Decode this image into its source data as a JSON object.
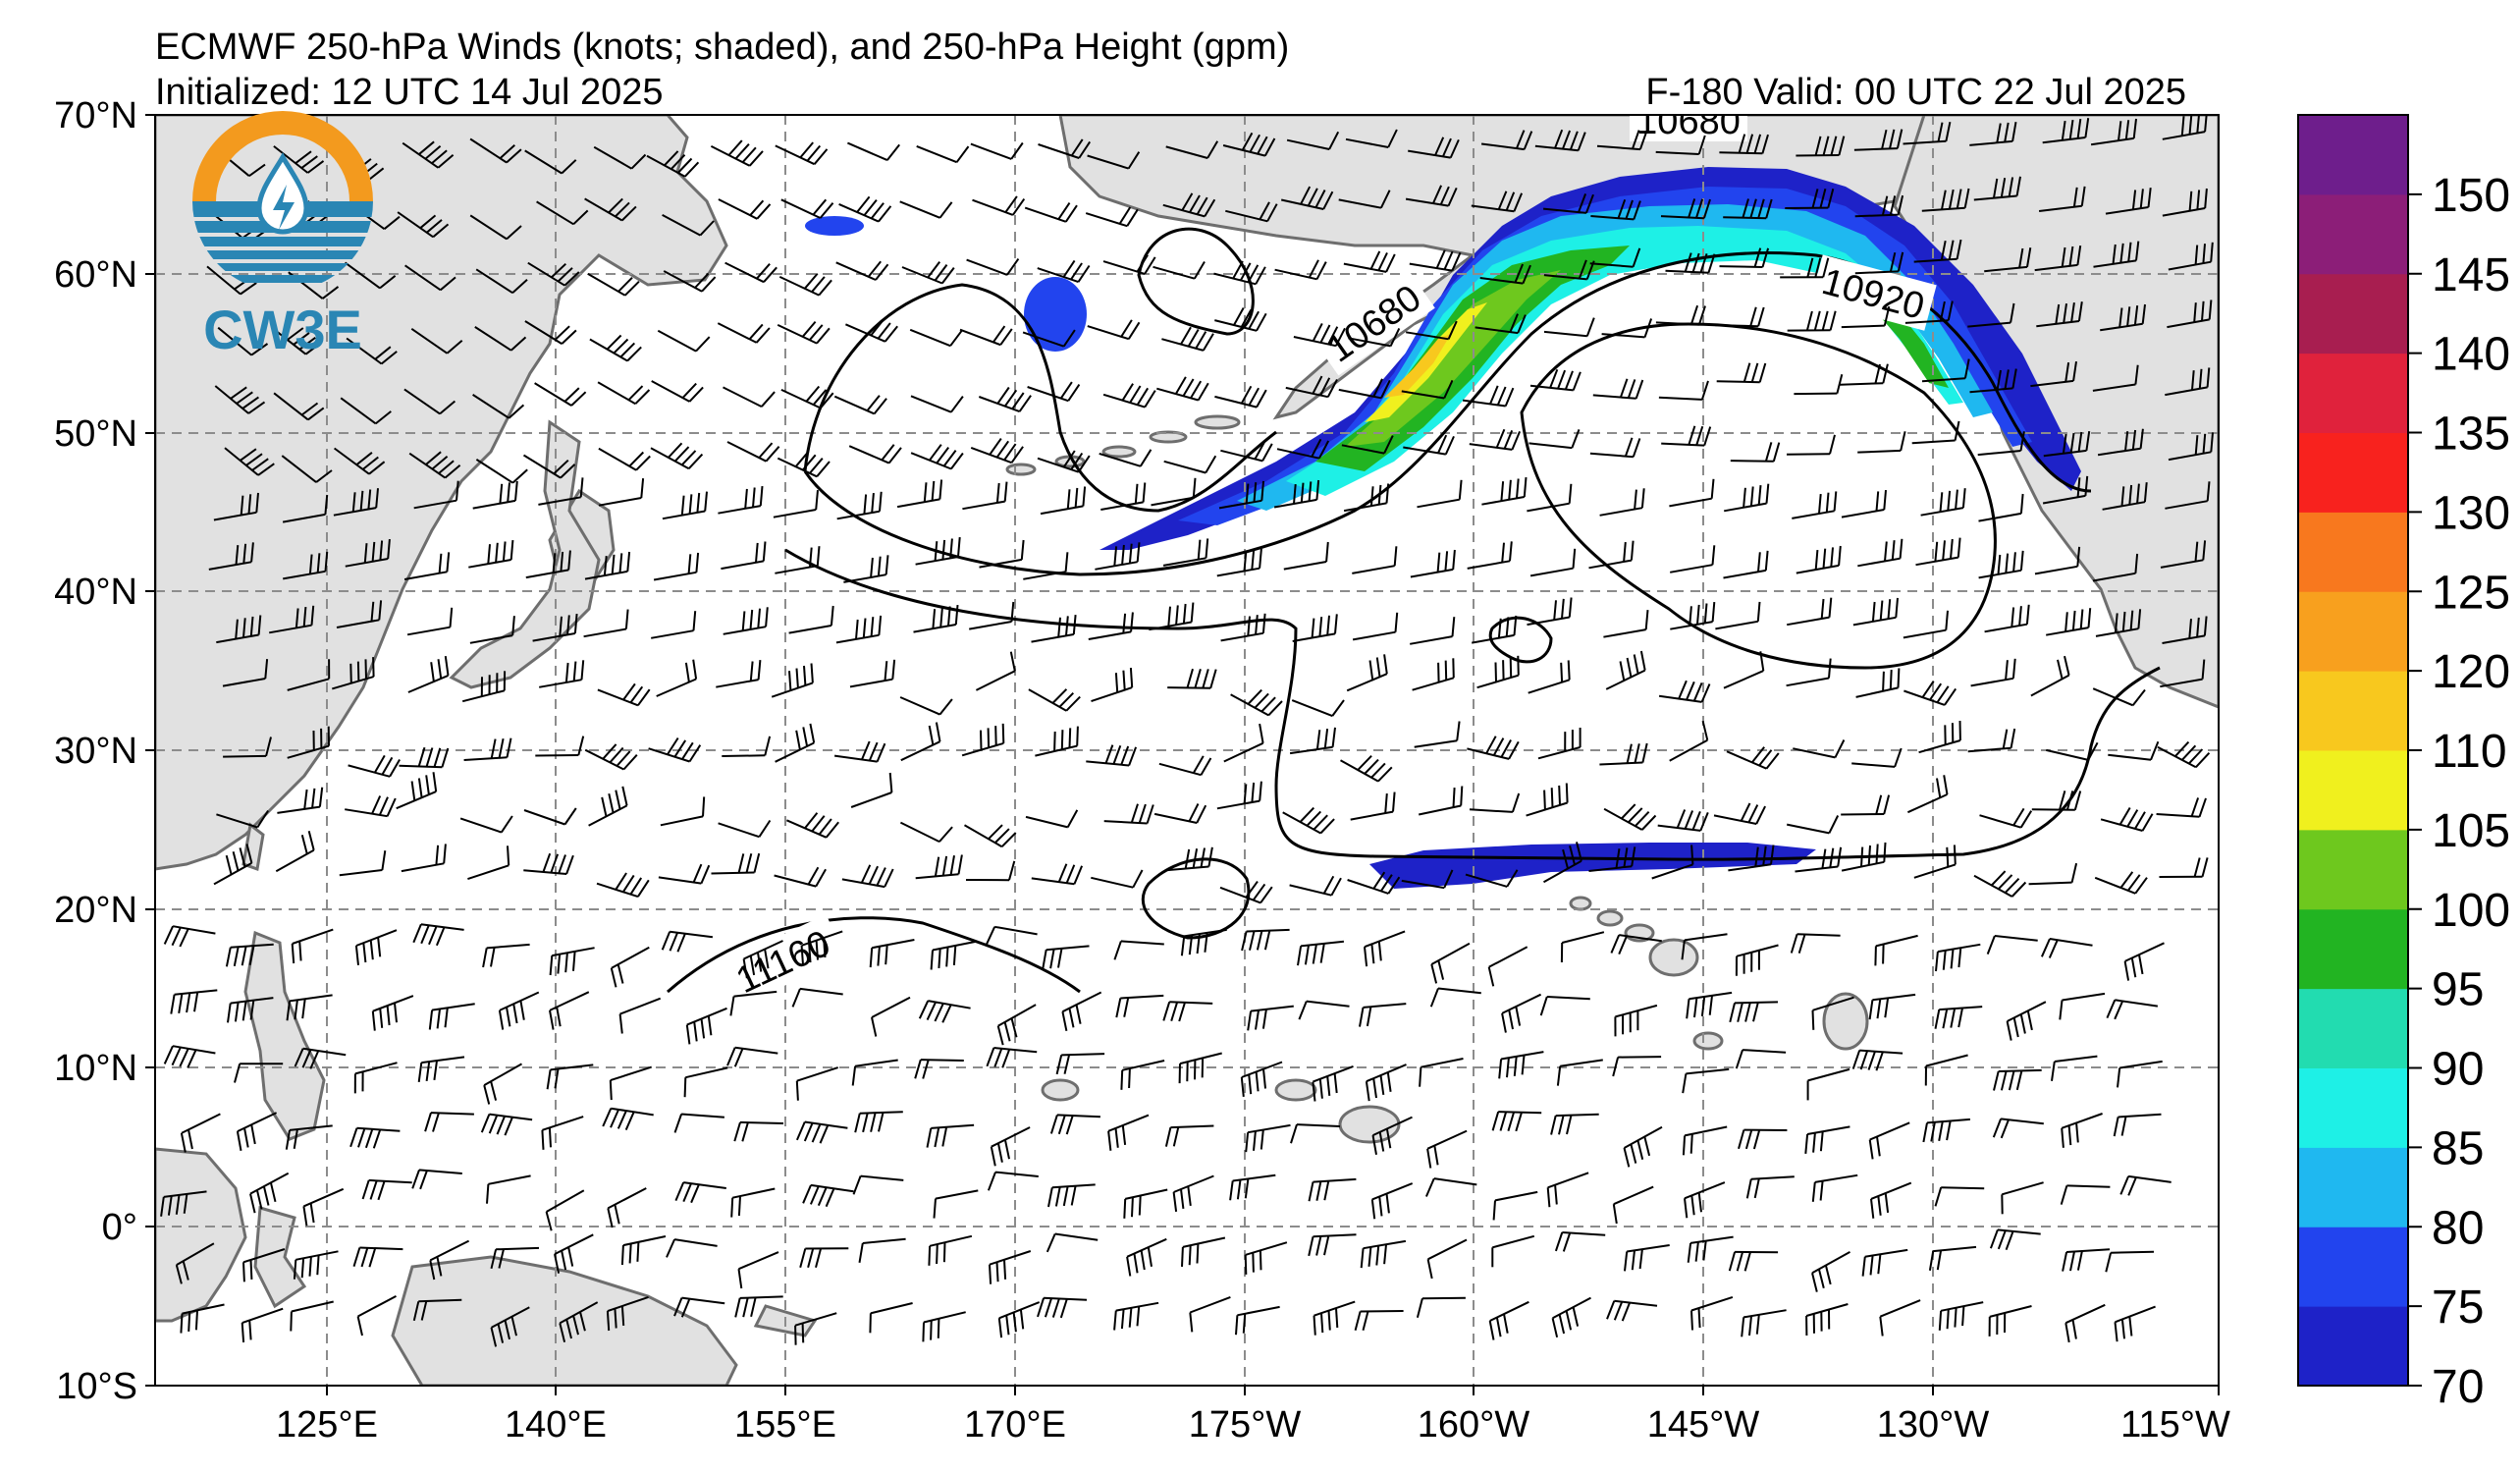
{
  "header": {
    "title": "ECMWF 250-hPa Winds (knots; shaded), and 250-hPa Height (gpm)",
    "initialized": "Initialized: 12 UTC 14 Jul 2025",
    "valid": "F-180  Valid: 00 UTC 22 Jul 2025"
  },
  "logo": {
    "text": "CW3E",
    "colors": {
      "sun": "#f39a1e",
      "water": "#2a86b4"
    }
  },
  "map": {
    "lat_labels": [
      "70°N",
      "60°N",
      "50°N",
      "40°N",
      "30°N",
      "20°N",
      "10°N",
      "0°",
      "10°S"
    ],
    "lon_labels": [
      "125°E",
      "140°E",
      "155°E",
      "170°E",
      "175°W",
      "160°W",
      "145°W",
      "130°W",
      "115°W"
    ],
    "contour_labels": [
      "10680",
      "10680",
      "10920",
      "11160"
    ],
    "colors": {
      "land": "#e1e1e1",
      "coast": "#6e6e6e",
      "grid": "#8c8c8c",
      "contour": "#000000"
    }
  },
  "colorbar": {
    "unit": "knots",
    "tick_labels": [
      "70",
      "75",
      "80",
      "85",
      "90",
      "95",
      "100",
      "105",
      "110",
      "120",
      "125",
      "130",
      "135",
      "140",
      "145",
      "150"
    ],
    "colors": [
      "#1e22c8",
      "#2244ee",
      "#1fb8f0",
      "#1ef0e6",
      "#22dcb0",
      "#22b422",
      "#6ec81e",
      "#f0f01e",
      "#f8c81e",
      "#f8a01e",
      "#f8781e",
      "#f8221e",
      "#e0223c",
      "#a81e50",
      "#8c1e78",
      "#6e1e8c"
    ]
  }
}
